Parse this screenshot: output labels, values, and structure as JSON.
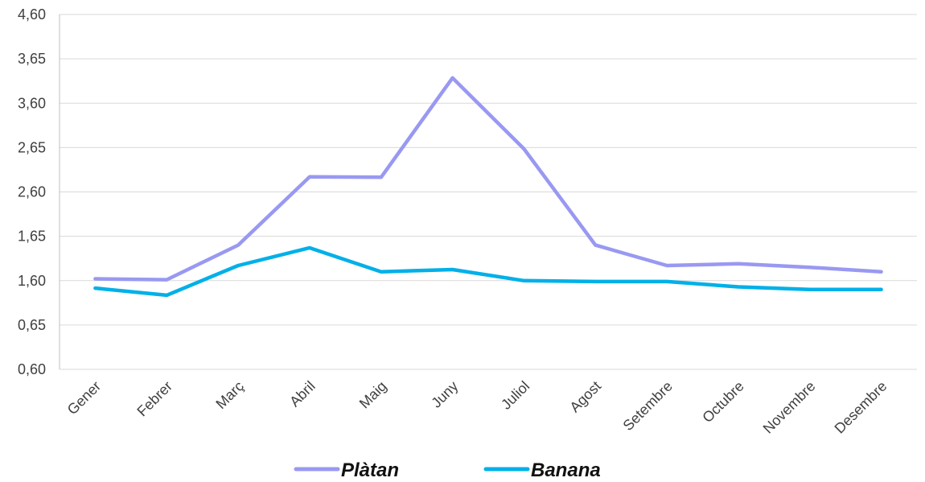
{
  "chart_data": {
    "type": "line",
    "title": "",
    "xlabel": "",
    "ylabel": "",
    "categories": [
      "Gener",
      "Febrer",
      "Març",
      "Abril",
      "Maig",
      "Juny",
      "Juliol",
      "Agost",
      "Setembre",
      "Octubre",
      "Novembre",
      "Desembre"
    ],
    "y_tick_labels": [
      "0,60",
      "0,65",
      "1,60",
      "1,65",
      "2,60",
      "2,65",
      "3,60",
      "3,65",
      "4,60"
    ],
    "ylim": [
      0,
      8
    ],
    "grid": true,
    "legend_position": "bottom",
    "series": [
      {
        "name": "Plàtan",
        "color": "#9999F2",
        "values": [
          2.04,
          2.02,
          2.8,
          4.34,
          4.33,
          6.57,
          4.97,
          2.8,
          2.34,
          2.38,
          2.3,
          2.2
        ]
      },
      {
        "name": "Banana",
        "color": "#00B0E8",
        "values": [
          1.83,
          1.67,
          2.34,
          2.74,
          2.2,
          2.25,
          2.0,
          1.98,
          1.98,
          1.86,
          1.8,
          1.8
        ]
      }
    ]
  }
}
